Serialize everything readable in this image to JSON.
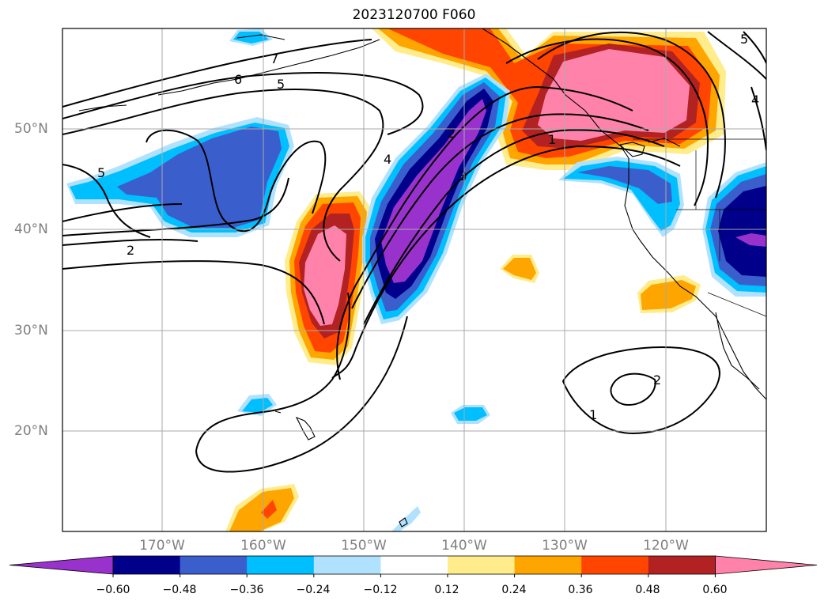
{
  "title": "2023120700 F060",
  "map": {
    "lon_range": [
      -180,
      -110
    ],
    "lat_range": [
      10,
      60
    ],
    "lat_ticks": [
      "50°N",
      "40°N",
      "30°N",
      "20°N"
    ],
    "lon_ticks": [
      "170°W",
      "160°W",
      "150°W",
      "140°W",
      "130°W",
      "120°W"
    ],
    "grid": true,
    "contour_labels": [
      "7",
      "6",
      "5",
      "5",
      "4",
      "3",
      "2",
      "1",
      "1",
      "2",
      "2",
      "4",
      "5"
    ]
  },
  "colorbar": {
    "ticks": [
      "−0.60",
      "−0.48",
      "−0.36",
      "−0.24",
      "−0.12",
      "0.12",
      "0.24",
      "0.36",
      "0.48",
      "0.60"
    ],
    "colors": [
      "#9932cc",
      "#00008b",
      "#3a5fcd",
      "#00bfff",
      "#b0e2ff",
      "#ffffff",
      "#ffec8b",
      "#ffa500",
      "#ff4500",
      "#b22222",
      "#ff82ab"
    ],
    "extend": "both"
  }
}
